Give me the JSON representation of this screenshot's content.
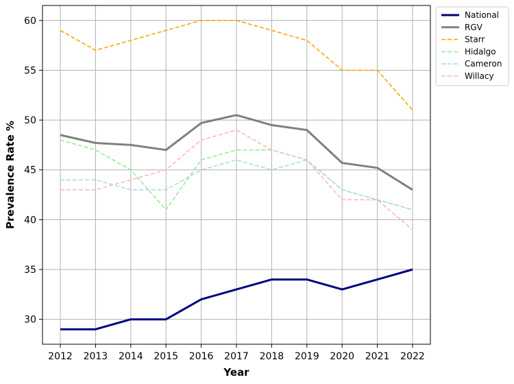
{
  "chart_data": {
    "type": "line",
    "title": "",
    "xlabel": "Year",
    "ylabel": "Prevalence Rate %",
    "x": [
      "2012",
      "2013",
      "2014",
      "2015",
      "2016",
      "2017",
      "2018",
      "2019",
      "2020",
      "2021",
      "2022"
    ],
    "ylim": [
      27.5,
      61.5
    ],
    "yticks": [
      30,
      35,
      40,
      45,
      50,
      55,
      60
    ],
    "grid": true,
    "legend_position": "outside-top-right",
    "series": [
      {
        "name": "National",
        "style": "solid",
        "color": "#000080",
        "values": [
          29,
          29,
          30,
          30,
          32,
          33,
          34,
          34,
          33,
          34,
          35
        ]
      },
      {
        "name": "RGV",
        "style": "solid",
        "color": "#808080",
        "values": [
          48.5,
          47.7,
          47.5,
          47,
          49.7,
          50.5,
          49.5,
          49,
          45.7,
          45.2,
          43
        ]
      },
      {
        "name": "Starr",
        "style": "dashed",
        "color": "#FFA500",
        "values": [
          59,
          57,
          58,
          59,
          60,
          60,
          59,
          58,
          55,
          55,
          51
        ]
      },
      {
        "name": "Hidalgo",
        "style": "dashed",
        "color": "#90EE90",
        "values": [
          48,
          47,
          45,
          41,
          46,
          47,
          47,
          46,
          43,
          42,
          41
        ]
      },
      {
        "name": "Cameron",
        "style": "dashed",
        "color": "#ADD8E6",
        "values": [
          44,
          44,
          43,
          43,
          45,
          46,
          45,
          46,
          43,
          42,
          41
        ]
      },
      {
        "name": "Willacy",
        "style": "dashed",
        "color": "#FFB6C1",
        "values": [
          43,
          43,
          44,
          45,
          48,
          49,
          47,
          46,
          42,
          42,
          39
        ]
      }
    ]
  }
}
